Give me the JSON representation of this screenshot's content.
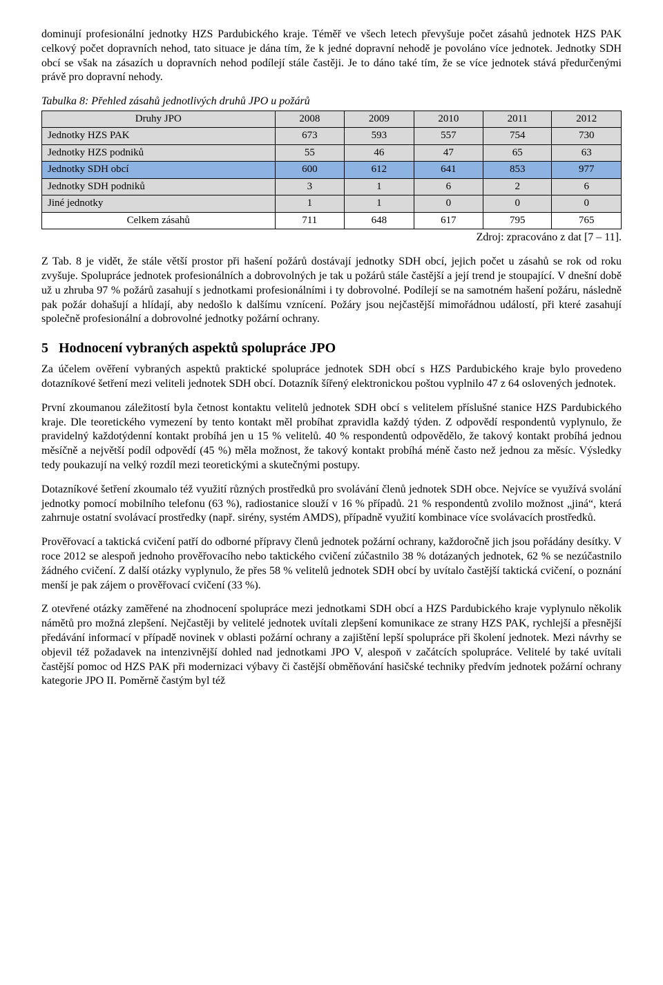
{
  "para_intro": "dominují profesionální jednotky HZS Pardubického kraje. Téměř ve všech letech převyšuje počet zásahů jednotek HZS PAK celkový počet dopravních nehod, tato situace je dána tím, že k jedné dopravní nehodě je povoláno více jednotek. Jednotky SDH obcí se však na zásazích u dopravních nehod podílejí stále častěji. Je to dáno také tím, že se více jednotek stává předurčenými právě pro dopravní nehody.",
  "table": {
    "caption": "Tabulka 8: Přehled zásahů jednotlivých druhů JPO u požárů",
    "header_label": "Druhy JPO",
    "years": [
      "2008",
      "2009",
      "2010",
      "2011",
      "2012"
    ],
    "rows": [
      {
        "label": "Jednotky HZS PAK",
        "values": [
          "673",
          "593",
          "557",
          "754",
          "730"
        ],
        "style": "gray"
      },
      {
        "label": "Jednotky HZS podniků",
        "values": [
          "55",
          "46",
          "47",
          "65",
          "63"
        ],
        "style": "gray"
      },
      {
        "label": "Jednotky SDH obcí",
        "values": [
          "600",
          "612",
          "641",
          "853",
          "977"
        ],
        "style": "blue"
      },
      {
        "label": "Jednotky SDH podniků",
        "values": [
          "3",
          "1",
          "6",
          "2",
          "6"
        ],
        "style": "gray"
      },
      {
        "label": "Jiné jednotky",
        "values": [
          "1",
          "1",
          "0",
          "0",
          "0"
        ],
        "style": "gray"
      },
      {
        "label": "Celkem zásahů",
        "values": [
          "711",
          "648",
          "617",
          "795",
          "765"
        ],
        "style": "white",
        "label_align": "center"
      }
    ],
    "source": "Zdroj: zpracováno z dat [7 – 11]."
  },
  "para_after_table": "Z Tab. 8 je vidět, že stále větší prostor při hašení požárů dostávají jednotky SDH obcí, jejich počet u zásahů se rok od roku zvyšuje. Spolupráce jednotek profesionálních a dobrovolných je tak u požárů stále častější a její trend je stoupající. V dnešní době už u zhruba 97 % požárů zasahují s jednotkami profesionálními i ty dobrovolné. Podílejí se na samotném hašení požáru, následně pak požár dohašují a hlídají, aby nedošlo k dalšímu vznícení. Požáry jsou nejčastější mimořádnou událostí, při které zasahují společně profesionální a dobrovolné jednotky požární ochrany.",
  "section5": {
    "number": "5",
    "title": "Hodnocení vybraných aspektů spolupráce JPO"
  },
  "para_s5_1": "Za účelem ověření vybraných aspektů praktické spolupráce jednotek SDH obcí s HZS Pardubického kraje bylo provedeno dotazníkové šetření mezi veliteli jednotek SDH obcí. Dotazník šířený elektronickou poštou vyplnilo 47 z 64 oslovených jednotek.",
  "para_s5_2": "První zkoumanou záležitostí byla četnost kontaktu velitelů jednotek SDH obcí s velitelem příslušné stanice HZS Pardubického kraje. Dle teoretického vymezení by tento kontakt měl probíhat zpravidla každý týden. Z odpovědí respondentů vyplynulo, že pravidelný každotýdenní kontakt probíhá jen u 15 % velitelů. 40 % respondentů odpovědělo, že takový kontakt probíhá jednou měsíčně a největší podíl odpovědí (45 %) měla možnost, že takový kontakt probíhá méně často než jednou za měsíc. Výsledky tedy poukazují na velký rozdíl mezi teoretickými a skutečnými postupy.",
  "para_s5_3": "Dotazníkové šetření zkoumalo též využití různých prostředků pro svolávání členů jednotek SDH obce. Nejvíce se využívá svolání jednotky pomocí mobilního telefonu (63 %), radiostanice slouží v 16 % případů. 21 % respondentů zvolilo možnost „jiná“, která zahrnuje ostatní svolávací prostředky (např. sirény, systém AMDS), případně využití kombinace více svolávacích prostředků.",
  "para_s5_4": "Prověřovací a taktická cvičení patří do odborné přípravy členů jednotek požární ochrany, každoročně jich jsou pořádány desítky. V roce 2012 se alespoň jednoho prověřovacího nebo taktického cvičení zúčastnilo 38 % dotázaných jednotek, 62 % se nezúčastnilo žádného cvičení. Z další otázky vyplynulo, že přes 58 % velitelů jednotek SDH obcí by uvítalo častější taktická cvičení, o poznání menší je pak zájem o prověřovací cvičení (33 %).",
  "para_s5_5": "Z otevřené otázky zaměřené na zhodnocení spolupráce mezi jednotkami SDH obcí a HZS Pardubického kraje vyplynulo několik námětů pro možná zlepšení. Nejčastěji by velitelé jednotek uvítali zlepšení komunikace ze strany HZS PAK, rychlejší a přesnější předávání informací v případě novinek v oblasti požární ochrany a zajištění lepší spolupráce při školení jednotek. Mezi návrhy se objevil též požadavek na intenzivnější dohled nad jednotkami JPO V, alespoň v začátcích spolupráce. Velitelé by také uvítali častější pomoc od HZS PAK při modernizaci výbavy či častější obměňování hasičské techniky předvím jednotek požární ochrany kategorie JPO II. Poměrně častým byl též"
}
